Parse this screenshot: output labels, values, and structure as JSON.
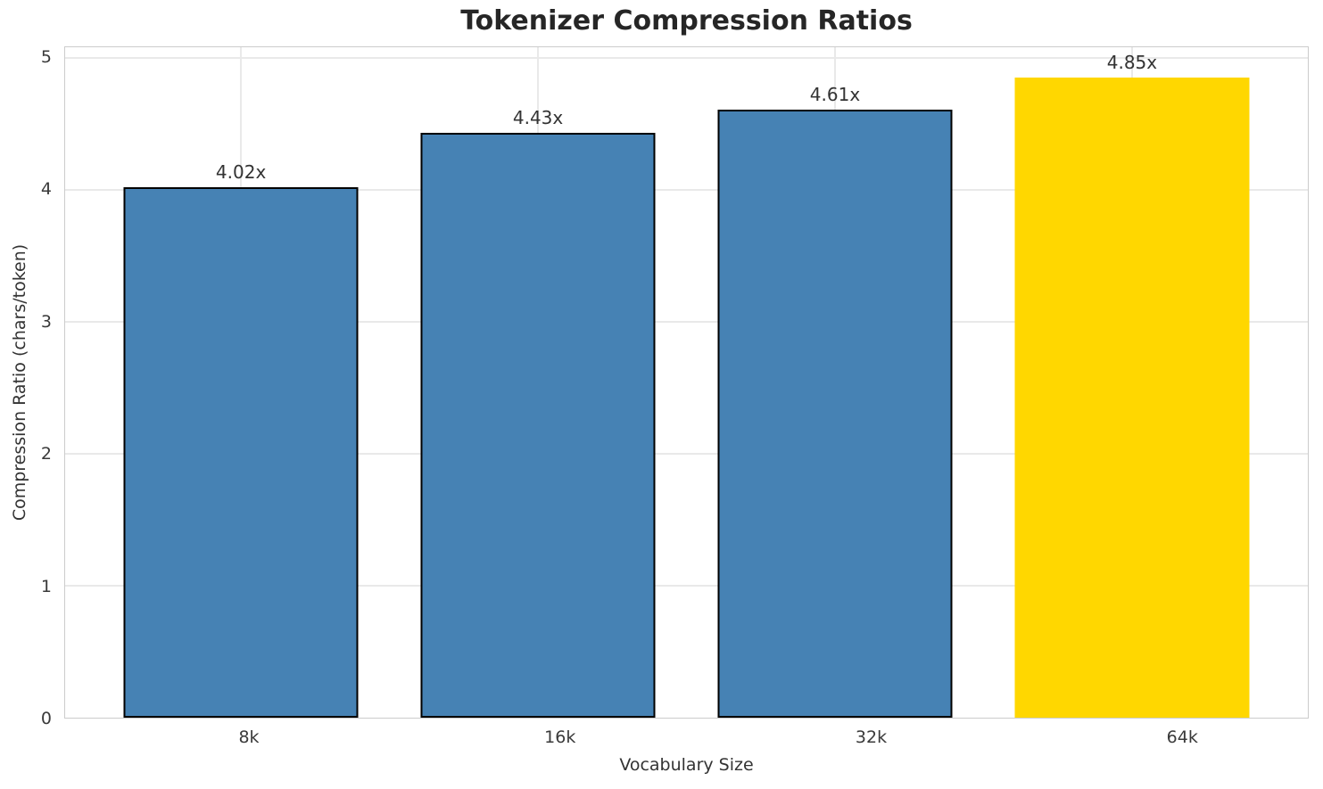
{
  "title": "Tokenizer Compression Ratios",
  "chart_data": {
    "type": "bar",
    "title": "Tokenizer Compression Ratios",
    "xlabel": "Vocabulary Size",
    "ylabel": "Compression Ratio (chars/token)",
    "categories": [
      "8k",
      "16k",
      "32k",
      "64k"
    ],
    "values": [
      4.02,
      4.43,
      4.61,
      4.85
    ],
    "value_labels": [
      "4.02x",
      "4.43x",
      "4.61x",
      "4.85x"
    ],
    "bar_colors": [
      "#4682B4",
      "#4682B4",
      "#4682B4",
      "#FFD700"
    ],
    "bar_edge_colors": [
      "#000000",
      "#000000",
      "#000000",
      "none"
    ],
    "ylim": [
      0,
      5.08
    ],
    "yticks": [
      0,
      1,
      2,
      3,
      4,
      5
    ],
    "grid": true,
    "legend_position": "none",
    "highlighted_category": "64k"
  },
  "colors": {
    "bar_default": "#4682B4",
    "bar_highlight": "#FFD700",
    "grid": "#e9e9e9",
    "spine": "#cccccc",
    "tick_text": "#3a3a3a",
    "title_text": "#262626",
    "background": "#ffffff"
  }
}
